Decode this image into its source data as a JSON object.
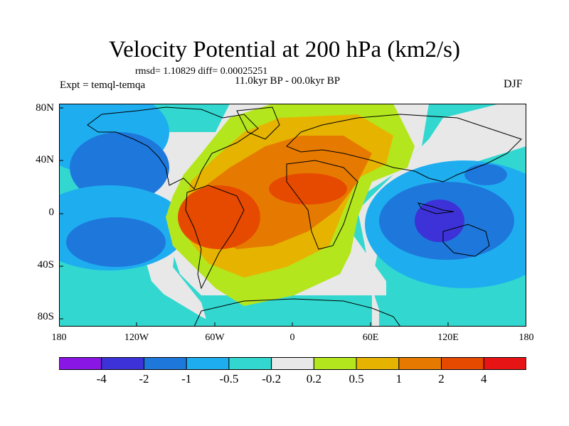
{
  "header": {
    "title": "Velocity Potential at 200 hPa (km2/s)",
    "stats": "rmsd= 1.10829 diff= 0.00025251",
    "period": "11.0kyr BP - 00.0kyr BP",
    "experiment": "Expt = temql-temqa",
    "season": "DJF"
  },
  "map": {
    "lat_labels": [
      "80N",
      "40N",
      "0",
      "40S",
      "80S"
    ],
    "lon_labels": [
      "180",
      "120W",
      "60W",
      "0",
      "60E",
      "120E",
      "180"
    ],
    "features": {
      "positive_center": "tropical South America / Atlantic / Africa",
      "negative_center": "Maritime Continent / Indonesia"
    }
  },
  "colorbar": {
    "colors": [
      "#8a16e6",
      "#3c32d8",
      "#1e78dc",
      "#1eaef0",
      "#32d8d0",
      "#e8e8e8",
      "#b4e61e",
      "#e6b400",
      "#e67a00",
      "#e64a00",
      "#e61414"
    ],
    "labels": [
      "-4",
      "-2",
      "-1",
      "-0.5",
      "-0.2",
      "0.2",
      "0.5",
      "1",
      "2",
      "4"
    ]
  }
}
